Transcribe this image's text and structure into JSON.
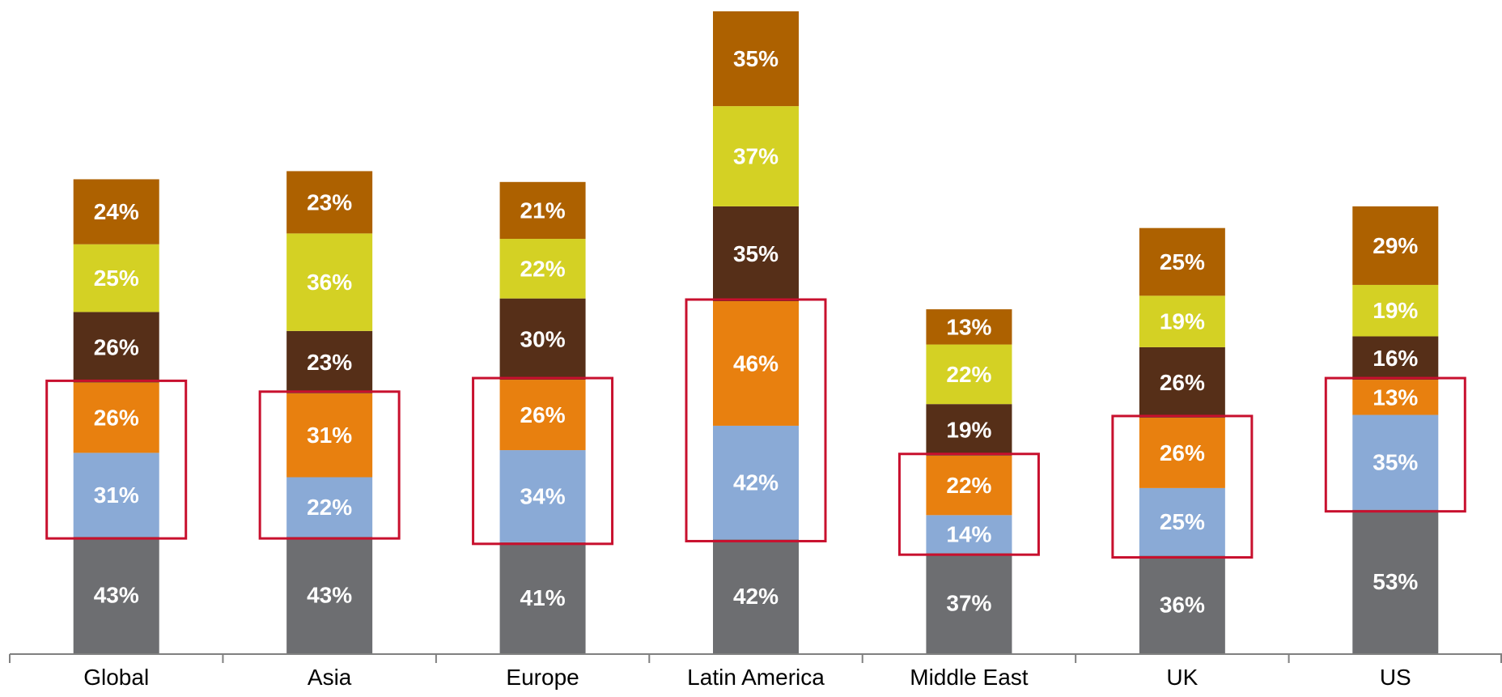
{
  "chart_data": {
    "type": "bar",
    "stacked": true,
    "categories": [
      "Global",
      "Asia",
      "Europe",
      "Latin America",
      "Middle East",
      "UK",
      "US"
    ],
    "series": [
      {
        "color": "#6d6e71",
        "values": [
          43,
          43,
          41,
          42,
          37,
          36,
          53
        ],
        "labels": [
          "43%",
          "43%",
          "41%",
          "42%",
          "37%",
          "36%",
          "53%"
        ]
      },
      {
        "color": "#8aaad6",
        "values": [
          31,
          22,
          34,
          42,
          14,
          25,
          35
        ],
        "labels": [
          "31%",
          "22%",
          "34%",
          "42%",
          "14%",
          "25%",
          "35%"
        ]
      },
      {
        "color": "#e8800f",
        "values": [
          26,
          31,
          26,
          46,
          22,
          26,
          13
        ],
        "labels": [
          "26%",
          "31%",
          "26%",
          "46%",
          "22%",
          "26%",
          "13%"
        ]
      },
      {
        "color": "#562f18",
        "values": [
          26,
          23,
          30,
          35,
          19,
          26,
          16
        ],
        "labels": [
          "26%",
          "23%",
          "30%",
          "35%",
          "19%",
          "26%",
          "16%"
        ]
      },
      {
        "color": "#d4d124",
        "values": [
          25,
          36,
          22,
          37,
          22,
          19,
          19
        ],
        "labels": [
          "25%",
          "36%",
          "22%",
          "37%",
          "22%",
          "19%",
          "19%"
        ]
      },
      {
        "color": "#ad6100",
        "values": [
          24,
          23,
          21,
          35,
          13,
          25,
          29
        ],
        "labels": [
          "24%",
          "23%",
          "21%",
          "35%",
          "13%",
          "25%",
          "29%"
        ]
      }
    ],
    "highlight": {
      "series_indices": [
        1,
        2
      ],
      "color": "#c8102e"
    },
    "axis_color": "#808080",
    "ylim": [
      0,
      237
    ],
    "grid": false,
    "legend": "none"
  }
}
